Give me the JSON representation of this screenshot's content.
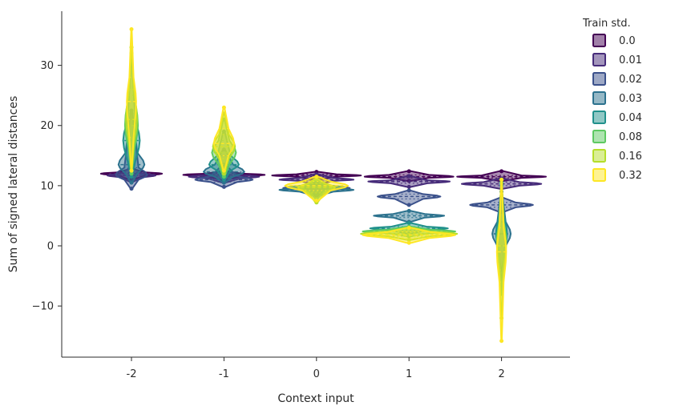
{
  "chart_data": {
    "type": "violin",
    "title": "",
    "xlabel": "Context input",
    "ylabel": "Sum of signed lateral distances",
    "categories": [
      "-2",
      "-1",
      "0",
      "1",
      "2"
    ],
    "ylim": [
      -18.5,
      39
    ],
    "yticks": [
      -10,
      0,
      10,
      20,
      30
    ],
    "grid": false,
    "legend": {
      "title": "Train std.",
      "position": "right"
    },
    "series": [
      {
        "name": "0.0",
        "color": "#440154",
        "data": [
          {
            "x": "-2",
            "min": 11.0,
            "q1": 11.7,
            "median": 12.0,
            "q3": 12.2,
            "max": 12.8,
            "halfwidth": 0.33
          },
          {
            "x": "-1",
            "min": 10.9,
            "q1": 11.6,
            "median": 11.8,
            "q3": 12.0,
            "max": 12.4,
            "halfwidth": 0.44
          },
          {
            "x": "0",
            "min": 11.0,
            "q1": 11.5,
            "median": 11.7,
            "q3": 11.9,
            "max": 12.3,
            "halfwidth": 0.48
          },
          {
            "x": "1",
            "min": 10.8,
            "q1": 11.3,
            "median": 11.5,
            "q3": 11.8,
            "max": 12.4,
            "halfwidth": 0.48
          },
          {
            "x": "2",
            "min": 10.8,
            "q1": 11.3,
            "median": 11.5,
            "q3": 11.7,
            "max": 12.4,
            "halfwidth": 0.48
          }
        ]
      },
      {
        "name": "0.01",
        "color": "#472c7a",
        "data": [
          {
            "x": "-2",
            "min": 10.6,
            "q1": 11.4,
            "median": 11.7,
            "q3": 12.0,
            "max": 13.0,
            "halfwidth": 0.26
          },
          {
            "x": "-1",
            "min": 10.5,
            "q1": 11.2,
            "median": 11.5,
            "q3": 11.8,
            "max": 12.5,
            "halfwidth": 0.38
          },
          {
            "x": "0",
            "min": 10.2,
            "q1": 10.8,
            "median": 11.0,
            "q3": 11.3,
            "max": 11.9,
            "halfwidth": 0.4
          },
          {
            "x": "1",
            "min": 9.8,
            "q1": 10.4,
            "median": 10.7,
            "q3": 10.9,
            "max": 11.6,
            "halfwidth": 0.44
          },
          {
            "x": "2",
            "min": 9.5,
            "q1": 10.0,
            "median": 10.3,
            "q3": 10.6,
            "max": 11.2,
            "halfwidth": 0.43
          }
        ]
      },
      {
        "name": "0.02",
        "color": "#3b518b",
        "data": [
          {
            "x": "-2",
            "min": 9.5,
            "q1": 11.0,
            "median": 11.8,
            "q3": 13.0,
            "max": 22.0,
            "halfwidth": 0.17
          },
          {
            "x": "-1",
            "min": 9.8,
            "q1": 10.6,
            "median": 11.0,
            "q3": 11.6,
            "max": 13.5,
            "halfwidth": 0.31
          },
          {
            "x": "0",
            "min": 8.6,
            "q1": 9.3,
            "median": 9.6,
            "q3": 10.0,
            "max": 10.8,
            "halfwidth": 0.36
          },
          {
            "x": "1",
            "min": 6.8,
            "q1": 7.8,
            "median": 8.2,
            "q3": 8.6,
            "max": 9.2,
            "halfwidth": 0.34
          },
          {
            "x": "2",
            "min": 5.6,
            "q1": 6.4,
            "median": 6.8,
            "q3": 7.2,
            "max": 8.0,
            "halfwidth": 0.34
          }
        ]
      },
      {
        "name": "0.03",
        "color": "#2c728e",
        "data": [
          {
            "x": "-2",
            "min": 10.5,
            "q1": 12.0,
            "median": 13.5,
            "q3": 15.5,
            "max": 22.5,
            "halfwidth": 0.14
          },
          {
            "x": "-1",
            "min": 10.5,
            "q1": 11.5,
            "median": 12.3,
            "q3": 13.5,
            "max": 16.0,
            "halfwidth": 0.22
          },
          {
            "x": "0",
            "min": 8.3,
            "q1": 9.0,
            "median": 9.3,
            "q3": 9.6,
            "max": 10.2,
            "halfwidth": 0.4
          },
          {
            "x": "1",
            "min": 4.0,
            "q1": 4.7,
            "median": 5.0,
            "q3": 5.3,
            "max": 5.8,
            "halfwidth": 0.38
          },
          {
            "x": "2",
            "min": -4.0,
            "q1": 0.0,
            "median": 2.0,
            "q3": 4.0,
            "max": 9.0,
            "halfwidth": 0.1
          }
        ]
      },
      {
        "name": "0.04",
        "color": "#21918c",
        "data": [
          {
            "x": "-2",
            "min": 11.5,
            "q1": 14.0,
            "median": 17.5,
            "q3": 21.0,
            "max": 31.0,
            "halfwidth": 0.09
          },
          {
            "x": "-1",
            "min": 11.0,
            "q1": 12.5,
            "median": 13.5,
            "q3": 15.0,
            "max": 19.0,
            "halfwidth": 0.16
          },
          {
            "x": "0",
            "min": 8.5,
            "q1": 9.3,
            "median": 9.7,
            "q3": 10.0,
            "max": 10.6,
            "halfwidth": 0.3
          },
          {
            "x": "1",
            "min": 2.0,
            "q1": 2.6,
            "median": 2.9,
            "q3": 3.2,
            "max": 3.8,
            "halfwidth": 0.42
          },
          {
            "x": "2",
            "min": -6.0,
            "q1": -1.0,
            "median": 2.0,
            "q3": 5.0,
            "max": 10.0,
            "halfwidth": 0.06
          }
        ]
      },
      {
        "name": "0.08",
        "color": "#5ec962",
        "data": [
          {
            "x": "-2",
            "min": 12.0,
            "q1": 16.0,
            "median": 20.0,
            "q3": 25.0,
            "max": 32.0,
            "halfwidth": 0.07
          },
          {
            "x": "-1",
            "min": 11.5,
            "q1": 13.5,
            "median": 15.5,
            "q3": 17.5,
            "max": 21.0,
            "halfwidth": 0.13
          },
          {
            "x": "0",
            "min": 7.8,
            "q1": 9.0,
            "median": 9.8,
            "q3": 10.3,
            "max": 11.0,
            "halfwidth": 0.18
          },
          {
            "x": "1",
            "min": 1.6,
            "q1": 2.1,
            "median": 2.4,
            "q3": 2.7,
            "max": 3.2,
            "halfwidth": 0.5
          },
          {
            "x": "2",
            "min": -8.0,
            "q1": -2.0,
            "median": 1.0,
            "q3": 4.0,
            "max": 10.5,
            "halfwidth": 0.05
          }
        ]
      },
      {
        "name": "0.16",
        "color": "#b5de2b",
        "data": [
          {
            "x": "-2",
            "min": 12.5,
            "q1": 17.0,
            "median": 21.0,
            "q3": 26.0,
            "max": 33.0,
            "halfwidth": 0.06
          },
          {
            "x": "-1",
            "min": 12.0,
            "q1": 14.5,
            "median": 16.5,
            "q3": 18.5,
            "max": 22.0,
            "halfwidth": 0.12
          },
          {
            "x": "0",
            "min": 7.2,
            "q1": 8.8,
            "median": 9.7,
            "q3": 10.4,
            "max": 11.2,
            "halfwidth": 0.2
          },
          {
            "x": "1",
            "min": 1.0,
            "q1": 1.6,
            "median": 2.0,
            "q3": 2.4,
            "max": 3.0,
            "halfwidth": 0.52
          },
          {
            "x": "2",
            "min": -12.0,
            "q1": -4.0,
            "median": 0.0,
            "q3": 4.0,
            "max": 11.0,
            "halfwidth": 0.05
          }
        ]
      },
      {
        "name": "0.32",
        "color": "#fde725",
        "data": [
          {
            "x": "-2",
            "min": 12.5,
            "q1": 18.0,
            "median": 24.0,
            "q3": 28.0,
            "max": 36.0,
            "halfwidth": 0.05
          },
          {
            "x": "-1",
            "min": 12.5,
            "q1": 15.0,
            "median": 17.0,
            "q3": 19.5,
            "max": 23.0,
            "halfwidth": 0.11
          },
          {
            "x": "0",
            "min": 7.5,
            "q1": 9.2,
            "median": 10.0,
            "q3": 10.7,
            "max": 11.5,
            "halfwidth": 0.34
          },
          {
            "x": "1",
            "min": 0.5,
            "q1": 1.3,
            "median": 1.8,
            "q3": 2.3,
            "max": 3.0,
            "halfwidth": 0.5
          },
          {
            "x": "2",
            "min": -15.8,
            "q1": -6.0,
            "median": -1.0,
            "q3": 3.0,
            "max": 11.0,
            "halfwidth": 0.05
          }
        ]
      }
    ]
  }
}
